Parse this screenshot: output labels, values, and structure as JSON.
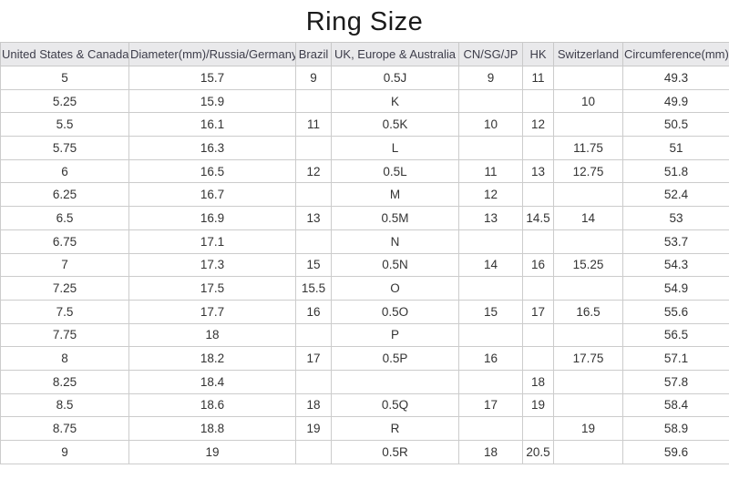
{
  "title": "Ring Size",
  "chart_data": {
    "type": "table",
    "title": "Ring Size",
    "columns": [
      "United States & Canada",
      "Diameter(mm)/Russia/Germany",
      "Brazil",
      "UK, Europe & Australia",
      "CN/SG/JP",
      "HK",
      "Switzerland",
      "Circumference(mm)"
    ],
    "rows": [
      [
        "5",
        "15.7",
        "9",
        "0.5J",
        "9",
        "11",
        "",
        "49.3"
      ],
      [
        "5.25",
        "15.9",
        "",
        "K",
        "",
        "",
        "10",
        "49.9"
      ],
      [
        "5.5",
        "16.1",
        "11",
        "0.5K",
        "10",
        "12",
        "",
        "50.5"
      ],
      [
        "5.75",
        "16.3",
        "",
        "L",
        "",
        "",
        "11.75",
        "51"
      ],
      [
        "6",
        "16.5",
        "12",
        "0.5L",
        "11",
        "13",
        "12.75",
        "51.8"
      ],
      [
        "6.25",
        "16.7",
        "",
        "M",
        "12",
        "",
        "",
        "52.4"
      ],
      [
        "6.5",
        "16.9",
        "13",
        "0.5M",
        "13",
        "14.5",
        "14",
        "53"
      ],
      [
        "6.75",
        "17.1",
        "",
        "N",
        "",
        "",
        "",
        "53.7"
      ],
      [
        "7",
        "17.3",
        "15",
        "0.5N",
        "14",
        "16",
        "15.25",
        "54.3"
      ],
      [
        "7.25",
        "17.5",
        "15.5",
        "O",
        "",
        "",
        "",
        "54.9"
      ],
      [
        "7.5",
        "17.7",
        "16",
        "0.5O",
        "15",
        "17",
        "16.5",
        "55.6"
      ],
      [
        "7.75",
        "18",
        "",
        "P",
        "",
        "",
        "",
        "56.5"
      ],
      [
        "8",
        "18.2",
        "17",
        "0.5P",
        "16",
        "",
        "17.75",
        "57.1"
      ],
      [
        "8.25",
        "18.4",
        "",
        "",
        "",
        "18",
        "",
        "57.8"
      ],
      [
        "8.5",
        "18.6",
        "18",
        "0.5Q",
        "17",
        "19",
        "",
        "58.4"
      ],
      [
        "8.75",
        "18.8",
        "19",
        "R",
        "",
        "",
        "19",
        "58.9"
      ],
      [
        "9",
        "19",
        "",
        "0.5R",
        "18",
        "20.5",
        "",
        "59.6"
      ]
    ],
    "layout": {
      "header_background": "#e9e9eb",
      "header_text_color": "#3d3d4a",
      "body_text_color": "#333333",
      "grid_color": "#cccccc",
      "grid": "on"
    }
  }
}
